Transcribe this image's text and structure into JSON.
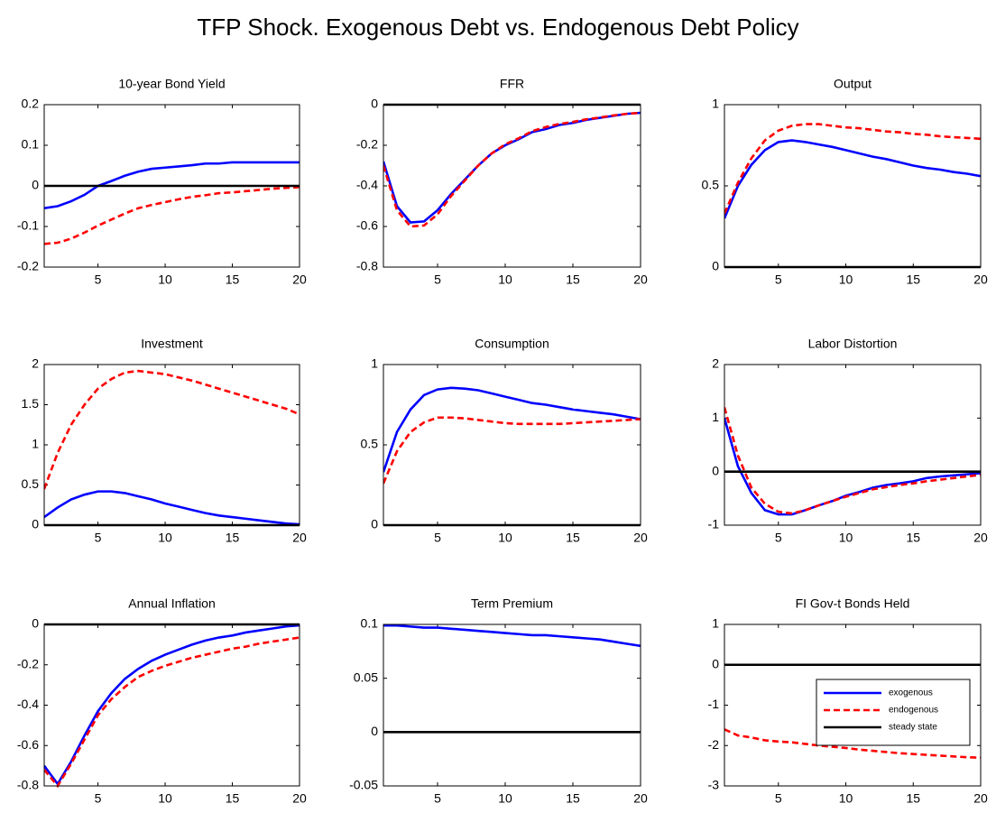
{
  "title": "TFP Shock. Exogenous Debt vs. Endogenous Debt Policy",
  "chart_data": [
    {
      "type": "line",
      "title": "10-year Bond Yield",
      "x": [
        1,
        2,
        3,
        4,
        5,
        6,
        7,
        8,
        9,
        10,
        11,
        12,
        13,
        14,
        15,
        16,
        17,
        18,
        19,
        20
      ],
      "xlim": [
        1,
        20
      ],
      "xticks": [
        5,
        10,
        15,
        20
      ],
      "ylim": [
        -0.2,
        0.2
      ],
      "yticks": [
        -0.2,
        -0.1,
        0,
        0.1,
        0.2
      ],
      "series": [
        {
          "color": "#0000ff",
          "style": "solid",
          "values": [
            -0.055,
            -0.05,
            -0.038,
            -0.022,
            0.0,
            0.012,
            0.025,
            0.035,
            0.042,
            0.045,
            0.048,
            0.051,
            0.055,
            0.055,
            0.058,
            0.058,
            0.058,
            0.058,
            0.058,
            0.058
          ]
        },
        {
          "color": "#ff0000",
          "style": "dashed",
          "values": [
            -0.143,
            -0.14,
            -0.13,
            -0.115,
            -0.098,
            -0.083,
            -0.068,
            -0.055,
            -0.047,
            -0.04,
            -0.033,
            -0.027,
            -0.023,
            -0.018,
            -0.016,
            -0.013,
            -0.01,
            -0.007,
            -0.005,
            -0.003
          ]
        },
        {
          "color": "#000000",
          "style": "solid",
          "values": [
            0,
            0,
            0,
            0,
            0,
            0,
            0,
            0,
            0,
            0,
            0,
            0,
            0,
            0,
            0,
            0,
            0,
            0,
            0,
            0
          ]
        }
      ]
    },
    {
      "type": "line",
      "title": "FFR",
      "x": [
        1,
        2,
        3,
        4,
        5,
        6,
        7,
        8,
        9,
        10,
        11,
        12,
        13,
        14,
        15,
        16,
        17,
        18,
        19,
        20
      ],
      "xlim": [
        1,
        20
      ],
      "xticks": [
        5,
        10,
        15,
        20
      ],
      "ylim": [
        -0.8,
        0
      ],
      "yticks": [
        -0.8,
        -0.6,
        -0.4,
        -0.2,
        0
      ],
      "series": [
        {
          "color": "#0000ff",
          "style": "solid",
          "values": [
            -0.28,
            -0.5,
            -0.58,
            -0.575,
            -0.52,
            -0.44,
            -0.37,
            -0.3,
            -0.24,
            -0.2,
            -0.17,
            -0.135,
            -0.12,
            -0.1,
            -0.09,
            -0.075,
            -0.065,
            -0.055,
            -0.045,
            -0.04
          ]
        },
        {
          "color": "#ff0000",
          "style": "dashed",
          "values": [
            -0.3,
            -0.52,
            -0.6,
            -0.595,
            -0.54,
            -0.45,
            -0.375,
            -0.3,
            -0.24,
            -0.195,
            -0.165,
            -0.13,
            -0.11,
            -0.095,
            -0.085,
            -0.072,
            -0.063,
            -0.053,
            -0.045,
            -0.04
          ]
        },
        {
          "color": "#000000",
          "style": "solid",
          "values": [
            0,
            0,
            0,
            0,
            0,
            0,
            0,
            0,
            0,
            0,
            0,
            0,
            0,
            0,
            0,
            0,
            0,
            0,
            0,
            0
          ]
        }
      ]
    },
    {
      "type": "line",
      "title": "Output",
      "x": [
        1,
        2,
        3,
        4,
        5,
        6,
        7,
        8,
        9,
        10,
        11,
        12,
        13,
        14,
        15,
        16,
        17,
        18,
        19,
        20
      ],
      "xlim": [
        1,
        20
      ],
      "xticks": [
        5,
        10,
        15,
        20
      ],
      "ylim": [
        0,
        1
      ],
      "yticks": [
        0,
        0.5,
        1
      ],
      "series": [
        {
          "color": "#0000ff",
          "style": "solid",
          "values": [
            0.3,
            0.5,
            0.63,
            0.72,
            0.77,
            0.78,
            0.77,
            0.755,
            0.74,
            0.72,
            0.7,
            0.68,
            0.665,
            0.645,
            0.625,
            0.61,
            0.6,
            0.585,
            0.575,
            0.56
          ]
        },
        {
          "color": "#ff0000",
          "style": "dashed",
          "values": [
            0.33,
            0.52,
            0.67,
            0.78,
            0.84,
            0.87,
            0.88,
            0.88,
            0.87,
            0.86,
            0.855,
            0.845,
            0.835,
            0.83,
            0.82,
            0.815,
            0.805,
            0.8,
            0.795,
            0.79
          ]
        },
        {
          "color": "#000000",
          "style": "solid",
          "values": [
            0,
            0,
            0,
            0,
            0,
            0,
            0,
            0,
            0,
            0,
            0,
            0,
            0,
            0,
            0,
            0,
            0,
            0,
            0,
            0
          ]
        }
      ]
    },
    {
      "type": "line",
      "title": "Investment",
      "x": [
        1,
        2,
        3,
        4,
        5,
        6,
        7,
        8,
        9,
        10,
        11,
        12,
        13,
        14,
        15,
        16,
        17,
        18,
        19,
        20
      ],
      "xlim": [
        1,
        20
      ],
      "xticks": [
        5,
        10,
        15,
        20
      ],
      "ylim": [
        0,
        2
      ],
      "yticks": [
        0,
        0.5,
        1,
        1.5,
        2
      ],
      "series": [
        {
          "color": "#0000ff",
          "style": "solid",
          "values": [
            0.1,
            0.22,
            0.32,
            0.38,
            0.42,
            0.42,
            0.4,
            0.36,
            0.32,
            0.27,
            0.23,
            0.19,
            0.15,
            0.12,
            0.1,
            0.08,
            0.06,
            0.04,
            0.02,
            0.01
          ]
        },
        {
          "color": "#ff0000",
          "style": "dashed",
          "values": [
            0.45,
            0.9,
            1.25,
            1.5,
            1.7,
            1.82,
            1.9,
            1.92,
            1.9,
            1.88,
            1.84,
            1.8,
            1.75,
            1.7,
            1.65,
            1.6,
            1.55,
            1.5,
            1.45,
            1.38
          ]
        },
        {
          "color": "#000000",
          "style": "solid",
          "values": [
            0,
            0,
            0,
            0,
            0,
            0,
            0,
            0,
            0,
            0,
            0,
            0,
            0,
            0,
            0,
            0,
            0,
            0,
            0,
            0
          ]
        }
      ]
    },
    {
      "type": "line",
      "title": "Consumption",
      "x": [
        1,
        2,
        3,
        4,
        5,
        6,
        7,
        8,
        9,
        10,
        11,
        12,
        13,
        14,
        15,
        16,
        17,
        18,
        19,
        20
      ],
      "xlim": [
        1,
        20
      ],
      "xticks": [
        5,
        10,
        15,
        20
      ],
      "ylim": [
        0,
        1
      ],
      "yticks": [
        0,
        0.5,
        1
      ],
      "series": [
        {
          "color": "#0000ff",
          "style": "solid",
          "values": [
            0.33,
            0.58,
            0.72,
            0.81,
            0.845,
            0.855,
            0.85,
            0.84,
            0.82,
            0.8,
            0.78,
            0.76,
            0.75,
            0.735,
            0.72,
            0.71,
            0.7,
            0.69,
            0.675,
            0.66
          ]
        },
        {
          "color": "#ff0000",
          "style": "dashed",
          "values": [
            0.26,
            0.46,
            0.58,
            0.64,
            0.67,
            0.67,
            0.665,
            0.655,
            0.645,
            0.635,
            0.63,
            0.63,
            0.63,
            0.63,
            0.635,
            0.64,
            0.645,
            0.65,
            0.655,
            0.66
          ]
        },
        {
          "color": "#000000",
          "style": "solid",
          "values": [
            0,
            0,
            0,
            0,
            0,
            0,
            0,
            0,
            0,
            0,
            0,
            0,
            0,
            0,
            0,
            0,
            0,
            0,
            0,
            0
          ]
        }
      ]
    },
    {
      "type": "line",
      "title": "Labor Distortion",
      "x": [
        1,
        2,
        3,
        4,
        5,
        6,
        7,
        8,
        9,
        10,
        11,
        12,
        13,
        14,
        15,
        16,
        17,
        18,
        19,
        20
      ],
      "xlim": [
        1,
        20
      ],
      "xticks": [
        5,
        10,
        15,
        20
      ],
      "ylim": [
        -1,
        2
      ],
      "yticks": [
        -1,
        0,
        1,
        2
      ],
      "series": [
        {
          "color": "#0000ff",
          "style": "solid",
          "values": [
            1.0,
            0.1,
            -0.4,
            -0.72,
            -0.8,
            -0.8,
            -0.72,
            -0.63,
            -0.55,
            -0.45,
            -0.38,
            -0.3,
            -0.25,
            -0.22,
            -0.18,
            -0.12,
            -0.09,
            -0.07,
            -0.05,
            -0.03
          ]
        },
        {
          "color": "#ff0000",
          "style": "dashed",
          "values": [
            1.2,
            0.3,
            -0.3,
            -0.6,
            -0.75,
            -0.78,
            -0.72,
            -0.63,
            -0.55,
            -0.47,
            -0.4,
            -0.33,
            -0.29,
            -0.25,
            -0.22,
            -0.18,
            -0.15,
            -0.12,
            -0.09,
            -0.06
          ]
        },
        {
          "color": "#000000",
          "style": "solid",
          "values": [
            0,
            0,
            0,
            0,
            0,
            0,
            0,
            0,
            0,
            0,
            0,
            0,
            0,
            0,
            0,
            0,
            0,
            0,
            0,
            0
          ]
        }
      ]
    },
    {
      "type": "line",
      "title": "Annual Inflation",
      "x": [
        1,
        2,
        3,
        4,
        5,
        6,
        7,
        8,
        9,
        10,
        11,
        12,
        13,
        14,
        15,
        16,
        17,
        18,
        19,
        20
      ],
      "xlim": [
        1,
        20
      ],
      "xticks": [
        5,
        10,
        15,
        20
      ],
      "ylim": [
        -0.8,
        0
      ],
      "yticks": [
        -0.8,
        -0.6,
        -0.4,
        -0.2,
        0
      ],
      "series": [
        {
          "color": "#0000ff",
          "style": "solid",
          "values": [
            -0.7,
            -0.79,
            -0.68,
            -0.55,
            -0.43,
            -0.34,
            -0.27,
            -0.22,
            -0.18,
            -0.15,
            -0.125,
            -0.1,
            -0.08,
            -0.065,
            -0.055,
            -0.04,
            -0.03,
            -0.02,
            -0.01,
            -0.005
          ]
        },
        {
          "color": "#ff0000",
          "style": "dashed",
          "values": [
            -0.72,
            -0.8,
            -0.69,
            -0.57,
            -0.45,
            -0.37,
            -0.31,
            -0.26,
            -0.23,
            -0.205,
            -0.185,
            -0.165,
            -0.15,
            -0.135,
            -0.12,
            -0.11,
            -0.095,
            -0.085,
            -0.075,
            -0.065
          ]
        },
        {
          "color": "#000000",
          "style": "solid",
          "values": [
            0,
            0,
            0,
            0,
            0,
            0,
            0,
            0,
            0,
            0,
            0,
            0,
            0,
            0,
            0,
            0,
            0,
            0,
            0,
            0
          ]
        }
      ]
    },
    {
      "type": "line",
      "title": "Term Premium",
      "x": [
        1,
        2,
        3,
        4,
        5,
        6,
        7,
        8,
        9,
        10,
        11,
        12,
        13,
        14,
        15,
        16,
        17,
        18,
        19,
        20
      ],
      "xlim": [
        1,
        20
      ],
      "xticks": [
        5,
        10,
        15,
        20
      ],
      "ylim": [
        -0.05,
        0.1
      ],
      "yticks": [
        -0.05,
        0,
        0.05,
        0.1
      ],
      "series": [
        {
          "color": "#0000ff",
          "style": "solid",
          "values": [
            0.099,
            0.099,
            0.098,
            0.097,
            0.097,
            0.096,
            0.095,
            0.094,
            0.093,
            0.092,
            0.091,
            0.09,
            0.09,
            0.089,
            0.088,
            0.087,
            0.086,
            0.084,
            0.082,
            0.08
          ]
        },
        {
          "color": "#000000",
          "style": "solid",
          "values": [
            0,
            0,
            0,
            0,
            0,
            0,
            0,
            0,
            0,
            0,
            0,
            0,
            0,
            0,
            0,
            0,
            0,
            0,
            0,
            0
          ]
        }
      ]
    },
    {
      "type": "line",
      "title": "FI Gov-t Bonds Held",
      "x": [
        1,
        2,
        3,
        4,
        5,
        6,
        7,
        8,
        9,
        10,
        11,
        12,
        13,
        14,
        15,
        16,
        17,
        18,
        19,
        20
      ],
      "xlim": [
        1,
        20
      ],
      "xticks": [
        5,
        10,
        15,
        20
      ],
      "ylim": [
        -3,
        1
      ],
      "yticks": [
        -3,
        -2,
        -1,
        0,
        1
      ],
      "legend": "center right",
      "series": [
        {
          "name": "exogenous",
          "color": "#0000ff",
          "style": "solid",
          "values": [
            0,
            0,
            0,
            0,
            0,
            0,
            0,
            0,
            0,
            0,
            0,
            0,
            0,
            0,
            0,
            0,
            0,
            0,
            0,
            0
          ]
        },
        {
          "name": "endogenous",
          "color": "#ff0000",
          "style": "dashed",
          "values": [
            -1.6,
            -1.75,
            -1.8,
            -1.87,
            -1.9,
            -1.92,
            -1.96,
            -2.0,
            -2.03,
            -2.06,
            -2.1,
            -2.13,
            -2.16,
            -2.19,
            -2.21,
            -2.23,
            -2.25,
            -2.27,
            -2.29,
            -2.3
          ]
        },
        {
          "name": "steady state",
          "color": "#000000",
          "style": "solid",
          "values": [
            0,
            0,
            0,
            0,
            0,
            0,
            0,
            0,
            0,
            0,
            0,
            0,
            0,
            0,
            0,
            0,
            0,
            0,
            0,
            0
          ]
        }
      ]
    }
  ]
}
